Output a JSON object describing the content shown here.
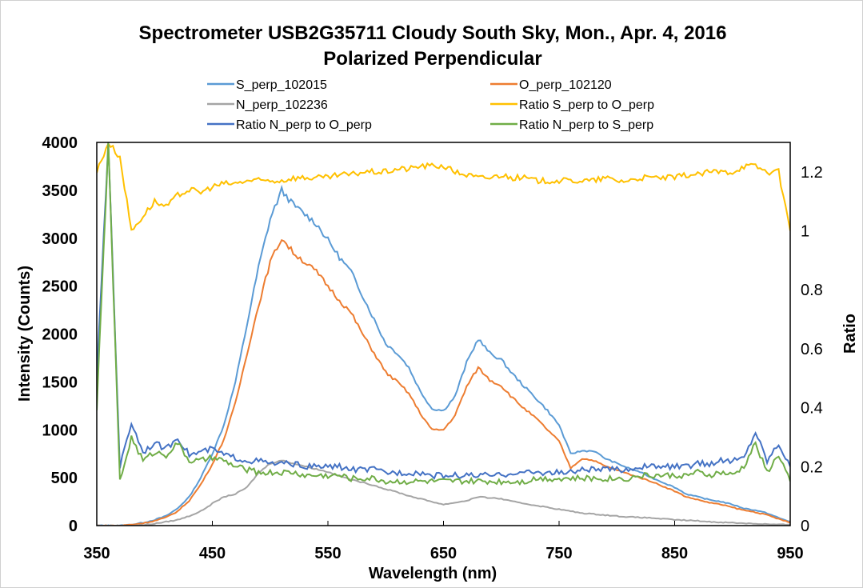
{
  "chart_data": {
    "type": "line",
    "title": "Spectrometer USB2G35711 Cloudy South Sky, Mon., Apr. 4, 2016",
    "subtitle": "Polarized Perpendicular",
    "xlabel": "Wavelength (nm)",
    "ylabel": "Intensity (Counts)",
    "y2label": "Ratio",
    "xlim": [
      350,
      950
    ],
    "ylim": [
      0,
      4000
    ],
    "y2lim": [
      0,
      1.3
    ],
    "xticks": [
      "350",
      "450",
      "550",
      "650",
      "750",
      "850",
      "950"
    ],
    "yticks": [
      "0",
      "500",
      "1000",
      "1500",
      "2000",
      "2500",
      "3000",
      "3500",
      "4000"
    ],
    "y2ticks": [
      "0",
      "0.2",
      "0.4",
      "0.6",
      "0.8",
      "1",
      "1.2"
    ],
    "legend_position": "top",
    "x": [
      350,
      360,
      370,
      380,
      390,
      400,
      410,
      420,
      430,
      440,
      450,
      460,
      470,
      480,
      490,
      500,
      510,
      520,
      530,
      540,
      550,
      560,
      570,
      580,
      590,
      600,
      610,
      620,
      630,
      640,
      650,
      660,
      670,
      680,
      690,
      700,
      710,
      720,
      730,
      740,
      750,
      760,
      770,
      780,
      790,
      800,
      810,
      820,
      830,
      840,
      850,
      860,
      870,
      880,
      890,
      900,
      910,
      920,
      930,
      940,
      950
    ],
    "series": [
      {
        "name": "S_perp_102015",
        "color": "#5B9BD5",
        "axis": "left",
        "values": [
          0,
          0,
          0,
          10,
          30,
          60,
          100,
          180,
          300,
          500,
          750,
          1050,
          1500,
          2100,
          2700,
          3200,
          3500,
          3350,
          3250,
          3150,
          2980,
          2800,
          2650,
          2400,
          2150,
          1900,
          1800,
          1650,
          1400,
          1220,
          1200,
          1350,
          1700,
          1950,
          1800,
          1730,
          1580,
          1450,
          1330,
          1200,
          1050,
          750,
          780,
          780,
          700,
          650,
          600,
          560,
          500,
          450,
          400,
          330,
          300,
          270,
          250,
          220,
          180,
          160,
          130,
          80,
          40
        ]
      },
      {
        "name": "O_perp_102120",
        "color": "#ED7D31",
        "axis": "left",
        "values": [
          0,
          0,
          0,
          10,
          25,
          50,
          85,
          150,
          260,
          430,
          640,
          900,
          1280,
          1800,
          2300,
          2750,
          3000,
          2850,
          2750,
          2650,
          2500,
          2350,
          2220,
          2000,
          1800,
          1600,
          1500,
          1380,
          1170,
          1000,
          1000,
          1150,
          1450,
          1650,
          1520,
          1460,
          1330,
          1220,
          1120,
          1000,
          880,
          600,
          700,
          680,
          620,
          580,
          540,
          500,
          460,
          410,
          360,
          300,
          270,
          240,
          220,
          190,
          160,
          140,
          110,
          70,
          30
        ]
      },
      {
        "name": "N_perp_102236",
        "color": "#A5A5A5",
        "axis": "left",
        "values": [
          0,
          0,
          0,
          0,
          5,
          20,
          40,
          60,
          100,
          150,
          230,
          300,
          330,
          400,
          550,
          650,
          680,
          650,
          620,
          590,
          560,
          520,
          480,
          450,
          420,
          380,
          350,
          310,
          280,
          250,
          220,
          240,
          260,
          300,
          290,
          280,
          250,
          230,
          210,
          190,
          170,
          150,
          130,
          120,
          110,
          100,
          90,
          85,
          80,
          70,
          60,
          55,
          50,
          40,
          35,
          30,
          25,
          20,
          15,
          10,
          10
        ]
      },
      {
        "name": "Ratio S_perp to O_perp",
        "color": "#FFC000",
        "axis": "right",
        "values": [
          1.2,
          1.3,
          1.25,
          1.0,
          1.05,
          1.1,
          1.08,
          1.12,
          1.14,
          1.13,
          1.15,
          1.16,
          1.16,
          1.17,
          1.17,
          1.17,
          1.17,
          1.18,
          1.18,
          1.18,
          1.18,
          1.19,
          1.19,
          1.2,
          1.2,
          1.2,
          1.21,
          1.21,
          1.22,
          1.22,
          1.22,
          1.2,
          1.19,
          1.18,
          1.18,
          1.19,
          1.18,
          1.18,
          1.17,
          1.17,
          1.17,
          1.17,
          1.17,
          1.17,
          1.18,
          1.17,
          1.17,
          1.18,
          1.18,
          1.18,
          1.18,
          1.19,
          1.19,
          1.2,
          1.2,
          1.2,
          1.22,
          1.22,
          1.2,
          1.2,
          1.0
        ]
      },
      {
        "name": "Ratio N_perp to O_perp",
        "color": "#4472C4",
        "axis": "right",
        "values": [
          0.5,
          1.3,
          0.2,
          0.35,
          0.25,
          0.28,
          0.26,
          0.3,
          0.24,
          0.25,
          0.26,
          0.24,
          0.23,
          0.22,
          0.22,
          0.21,
          0.21,
          0.21,
          0.2,
          0.2,
          0.2,
          0.2,
          0.19,
          0.19,
          0.19,
          0.18,
          0.18,
          0.18,
          0.18,
          0.17,
          0.17,
          0.17,
          0.17,
          0.17,
          0.17,
          0.17,
          0.18,
          0.18,
          0.18,
          0.18,
          0.18,
          0.18,
          0.19,
          0.19,
          0.19,
          0.19,
          0.19,
          0.2,
          0.2,
          0.2,
          0.2,
          0.2,
          0.21,
          0.21,
          0.22,
          0.22,
          0.23,
          0.32,
          0.22,
          0.28,
          0.2
        ]
      },
      {
        "name": "Ratio N_perp to S_perp",
        "color": "#70AD47",
        "axis": "right",
        "values": [
          0.4,
          1.3,
          0.15,
          0.3,
          0.22,
          0.25,
          0.24,
          0.28,
          0.22,
          0.22,
          0.23,
          0.22,
          0.2,
          0.19,
          0.18,
          0.18,
          0.18,
          0.18,
          0.17,
          0.17,
          0.17,
          0.17,
          0.16,
          0.16,
          0.16,
          0.15,
          0.15,
          0.15,
          0.15,
          0.15,
          0.15,
          0.15,
          0.15,
          0.15,
          0.15,
          0.15,
          0.15,
          0.15,
          0.16,
          0.16,
          0.16,
          0.16,
          0.16,
          0.16,
          0.16,
          0.16,
          0.16,
          0.17,
          0.17,
          0.17,
          0.17,
          0.17,
          0.18,
          0.17,
          0.18,
          0.17,
          0.2,
          0.28,
          0.18,
          0.24,
          0.15
        ]
      }
    ]
  }
}
